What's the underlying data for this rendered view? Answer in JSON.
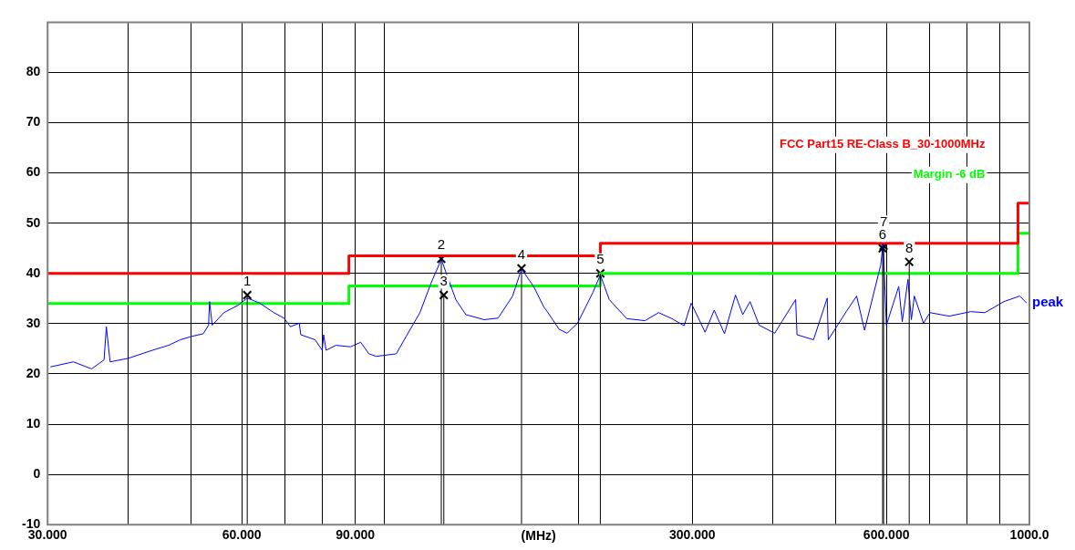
{
  "chart_data": {
    "type": "line",
    "xlabel": "(MHz)",
    "log": "x",
    "xlim": [
      30,
      1000
    ],
    "xticks": [
      {
        "value": 30,
        "label": "30.000"
      },
      {
        "value": 40,
        "label": null
      },
      {
        "value": 50,
        "label": null
      },
      {
        "value": 60,
        "label": "60.000"
      },
      {
        "value": 70,
        "label": null
      },
      {
        "value": 80,
        "label": null
      },
      {
        "value": 90,
        "label": "90.000"
      },
      {
        "value": 100,
        "label": null
      },
      {
        "value": 200,
        "label": null
      },
      {
        "value": 300,
        "label": "300.000"
      },
      {
        "value": 400,
        "label": null
      },
      {
        "value": 500,
        "label": null
      },
      {
        "value": 600,
        "label": "600.000"
      },
      {
        "value": 700,
        "label": null
      },
      {
        "value": 800,
        "label": null
      },
      {
        "value": 900,
        "label": null
      },
      {
        "value": 1000,
        "label": "1000.0"
      }
    ],
    "ylim": [
      -10,
      90
    ],
    "yticks": [
      -10,
      0,
      10,
      20,
      30,
      40,
      50,
      60,
      70,
      80,
      {
        "value": 90,
        "label": null
      }
    ],
    "grid": true,
    "legend": false,
    "series": [
      {
        "name": "peak",
        "color": "#0000ff",
        "x": [
          30.3,
          32.9,
          35.1,
          36.7,
          37.0,
          37.5,
          40,
          43.6,
          46.2,
          48.2,
          50.3,
          52.3,
          53.3,
          53.5,
          54.0,
          56.3,
          59.3,
          61.2,
          64.0,
          67.1,
          69.8,
          71.4,
          73.7,
          74.1,
          78.0,
          80.0,
          80.4,
          81.1,
          84.0,
          88.5,
          91.8,
          94.5,
          97.0,
          104.2,
          108.0,
          113.4,
          118.0,
          122.4,
          125.6,
          128.9,
          133.6,
          142.6,
          149.9,
          157.9,
          163.0,
          170.2,
          176.4,
          178.7,
          186.4,
          191.8,
          199.1,
          210.3,
          216,
          223,
          237.4,
          253.3,
          266.0,
          278.9,
          291.4,
          298.8,
          314,
          324.4,
          336.5,
          350,
          359.2,
          368.7,
          380.9,
          402.6,
          413,
          433.9,
          436,
          462.5,
          485.7,
          487.5,
          519.9,
          539.5,
          555,
          588,
          593,
          600,
          627,
          635,
          648,
          656,
          663,
          685,
          701,
          751,
          811,
          853,
          913,
          966,
          990
        ],
        "values": [
          21.4,
          22.4,
          21.0,
          22.8,
          29.4,
          22.4,
          23.1,
          24.7,
          25.7,
          26.8,
          27.5,
          28.0,
          29.7,
          34.4,
          29.7,
          32.2,
          33.7,
          35.1,
          34.1,
          32.3,
          31.1,
          29.4,
          30.1,
          27.8,
          26.8,
          24.7,
          27.8,
          24.7,
          25.7,
          25.4,
          26.3,
          24.0,
          23.5,
          24.0,
          27.5,
          32.2,
          38.1,
          42.8,
          38.8,
          34.8,
          31.8,
          30.8,
          31.1,
          35.5,
          40.9,
          37.4,
          33.4,
          32.4,
          28.9,
          28.1,
          30.1,
          36.2,
          39.7,
          34.8,
          31.0,
          30.6,
          32.2,
          31.0,
          29.6,
          34.1,
          28.3,
          32.7,
          28.0,
          35.7,
          31.8,
          34.4,
          29.7,
          28.1,
          30.4,
          34.8,
          27.8,
          26.8,
          35.1,
          26.8,
          32.4,
          35.5,
          28.7,
          41.7,
          46.1,
          29.7,
          37.4,
          30.4,
          38.8,
          30.8,
          35.5,
          30.1,
          32.2,
          31.5,
          32.4,
          32.2,
          34.4,
          35.5,
          34.1
        ]
      },
      {
        "name": "FCC Part15 RE-Class B_30-1000MHz",
        "type": "step",
        "color": "#ff0000",
        "x": [
          30,
          88,
          216,
          960,
          1000
        ],
        "values": [
          40,
          43.5,
          46,
          54,
          54
        ]
      },
      {
        "name": "Margin -6 dB",
        "type": "step",
        "color": "#00ff00",
        "x": [
          30,
          88,
          216,
          960,
          1000
        ],
        "values": [
          34,
          37.5,
          40,
          48,
          48
        ]
      },
      {
        "type": "lollipop",
        "color": "#000000",
        "marker": "cross",
        "x": [
          61.2,
          122.4,
          123.5,
          163,
          216,
          592,
          594,
          651
        ],
        "values": [
          35.7,
          42.9,
          35.7,
          41.0,
          40.0,
          45.0,
          45.5,
          42.3
        ]
      }
    ],
    "annotations": [
      {
        "text": "1",
        "x": 61.2,
        "y": 35.7
      },
      {
        "text": "2",
        "x": 122.4,
        "y": 42.9
      },
      {
        "text": "3",
        "x": 123.5,
        "y": 35.7
      },
      {
        "text": "4",
        "x": 163,
        "y": 41.0
      },
      {
        "text": "5",
        "x": 216,
        "y": 40.0
      },
      {
        "text": "6",
        "x": 592,
        "y": 45.0
      },
      {
        "text": "7",
        "x": 594,
        "y": 45.5
      },
      {
        "text": "8",
        "x": 651,
        "y": 42.3
      }
    ]
  }
}
